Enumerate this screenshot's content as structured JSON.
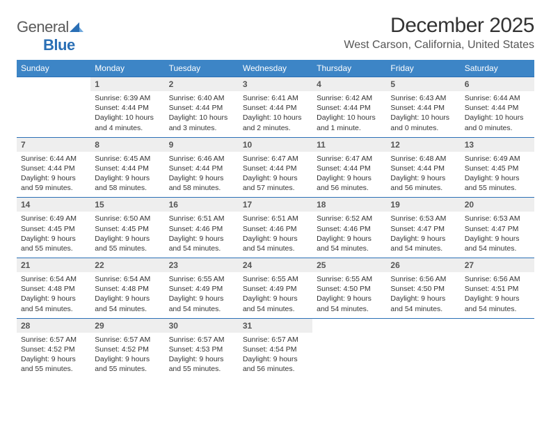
{
  "logo": {
    "word1": "General",
    "word2": "Blue"
  },
  "title": "December 2025",
  "location": "West Carson, California, United States",
  "colors": {
    "header_bg": "#3d85c6",
    "header_text": "#ffffff",
    "daynum_bg": "#eeeeee",
    "row_divider": "#2a6fb5",
    "body_text": "#333333",
    "logo_gray": "#5a5a5a",
    "logo_blue": "#2a6fb5"
  },
  "dayHeaders": [
    "Sunday",
    "Monday",
    "Tuesday",
    "Wednesday",
    "Thursday",
    "Friday",
    "Saturday"
  ],
  "weeks": [
    [
      {
        "n": "",
        "sunrise": "",
        "sunset": "",
        "daylight": ""
      },
      {
        "n": "1",
        "sunrise": "Sunrise: 6:39 AM",
        "sunset": "Sunset: 4:44 PM",
        "daylight": "Daylight: 10 hours and 4 minutes."
      },
      {
        "n": "2",
        "sunrise": "Sunrise: 6:40 AM",
        "sunset": "Sunset: 4:44 PM",
        "daylight": "Daylight: 10 hours and 3 minutes."
      },
      {
        "n": "3",
        "sunrise": "Sunrise: 6:41 AM",
        "sunset": "Sunset: 4:44 PM",
        "daylight": "Daylight: 10 hours and 2 minutes."
      },
      {
        "n": "4",
        "sunrise": "Sunrise: 6:42 AM",
        "sunset": "Sunset: 4:44 PM",
        "daylight": "Daylight: 10 hours and 1 minute."
      },
      {
        "n": "5",
        "sunrise": "Sunrise: 6:43 AM",
        "sunset": "Sunset: 4:44 PM",
        "daylight": "Daylight: 10 hours and 0 minutes."
      },
      {
        "n": "6",
        "sunrise": "Sunrise: 6:44 AM",
        "sunset": "Sunset: 4:44 PM",
        "daylight": "Daylight: 10 hours and 0 minutes."
      }
    ],
    [
      {
        "n": "7",
        "sunrise": "Sunrise: 6:44 AM",
        "sunset": "Sunset: 4:44 PM",
        "daylight": "Daylight: 9 hours and 59 minutes."
      },
      {
        "n": "8",
        "sunrise": "Sunrise: 6:45 AM",
        "sunset": "Sunset: 4:44 PM",
        "daylight": "Daylight: 9 hours and 58 minutes."
      },
      {
        "n": "9",
        "sunrise": "Sunrise: 6:46 AM",
        "sunset": "Sunset: 4:44 PM",
        "daylight": "Daylight: 9 hours and 58 minutes."
      },
      {
        "n": "10",
        "sunrise": "Sunrise: 6:47 AM",
        "sunset": "Sunset: 4:44 PM",
        "daylight": "Daylight: 9 hours and 57 minutes."
      },
      {
        "n": "11",
        "sunrise": "Sunrise: 6:47 AM",
        "sunset": "Sunset: 4:44 PM",
        "daylight": "Daylight: 9 hours and 56 minutes."
      },
      {
        "n": "12",
        "sunrise": "Sunrise: 6:48 AM",
        "sunset": "Sunset: 4:44 PM",
        "daylight": "Daylight: 9 hours and 56 minutes."
      },
      {
        "n": "13",
        "sunrise": "Sunrise: 6:49 AM",
        "sunset": "Sunset: 4:45 PM",
        "daylight": "Daylight: 9 hours and 55 minutes."
      }
    ],
    [
      {
        "n": "14",
        "sunrise": "Sunrise: 6:49 AM",
        "sunset": "Sunset: 4:45 PM",
        "daylight": "Daylight: 9 hours and 55 minutes."
      },
      {
        "n": "15",
        "sunrise": "Sunrise: 6:50 AM",
        "sunset": "Sunset: 4:45 PM",
        "daylight": "Daylight: 9 hours and 55 minutes."
      },
      {
        "n": "16",
        "sunrise": "Sunrise: 6:51 AM",
        "sunset": "Sunset: 4:46 PM",
        "daylight": "Daylight: 9 hours and 54 minutes."
      },
      {
        "n": "17",
        "sunrise": "Sunrise: 6:51 AM",
        "sunset": "Sunset: 4:46 PM",
        "daylight": "Daylight: 9 hours and 54 minutes."
      },
      {
        "n": "18",
        "sunrise": "Sunrise: 6:52 AM",
        "sunset": "Sunset: 4:46 PM",
        "daylight": "Daylight: 9 hours and 54 minutes."
      },
      {
        "n": "19",
        "sunrise": "Sunrise: 6:53 AM",
        "sunset": "Sunset: 4:47 PM",
        "daylight": "Daylight: 9 hours and 54 minutes."
      },
      {
        "n": "20",
        "sunrise": "Sunrise: 6:53 AM",
        "sunset": "Sunset: 4:47 PM",
        "daylight": "Daylight: 9 hours and 54 minutes."
      }
    ],
    [
      {
        "n": "21",
        "sunrise": "Sunrise: 6:54 AM",
        "sunset": "Sunset: 4:48 PM",
        "daylight": "Daylight: 9 hours and 54 minutes."
      },
      {
        "n": "22",
        "sunrise": "Sunrise: 6:54 AM",
        "sunset": "Sunset: 4:48 PM",
        "daylight": "Daylight: 9 hours and 54 minutes."
      },
      {
        "n": "23",
        "sunrise": "Sunrise: 6:55 AM",
        "sunset": "Sunset: 4:49 PM",
        "daylight": "Daylight: 9 hours and 54 minutes."
      },
      {
        "n": "24",
        "sunrise": "Sunrise: 6:55 AM",
        "sunset": "Sunset: 4:49 PM",
        "daylight": "Daylight: 9 hours and 54 minutes."
      },
      {
        "n": "25",
        "sunrise": "Sunrise: 6:55 AM",
        "sunset": "Sunset: 4:50 PM",
        "daylight": "Daylight: 9 hours and 54 minutes."
      },
      {
        "n": "26",
        "sunrise": "Sunrise: 6:56 AM",
        "sunset": "Sunset: 4:50 PM",
        "daylight": "Daylight: 9 hours and 54 minutes."
      },
      {
        "n": "27",
        "sunrise": "Sunrise: 6:56 AM",
        "sunset": "Sunset: 4:51 PM",
        "daylight": "Daylight: 9 hours and 54 minutes."
      }
    ],
    [
      {
        "n": "28",
        "sunrise": "Sunrise: 6:57 AM",
        "sunset": "Sunset: 4:52 PM",
        "daylight": "Daylight: 9 hours and 55 minutes."
      },
      {
        "n": "29",
        "sunrise": "Sunrise: 6:57 AM",
        "sunset": "Sunset: 4:52 PM",
        "daylight": "Daylight: 9 hours and 55 minutes."
      },
      {
        "n": "30",
        "sunrise": "Sunrise: 6:57 AM",
        "sunset": "Sunset: 4:53 PM",
        "daylight": "Daylight: 9 hours and 55 minutes."
      },
      {
        "n": "31",
        "sunrise": "Sunrise: 6:57 AM",
        "sunset": "Sunset: 4:54 PM",
        "daylight": "Daylight: 9 hours and 56 minutes."
      },
      {
        "n": "",
        "sunrise": "",
        "sunset": "",
        "daylight": ""
      },
      {
        "n": "",
        "sunrise": "",
        "sunset": "",
        "daylight": ""
      },
      {
        "n": "",
        "sunrise": "",
        "sunset": "",
        "daylight": ""
      }
    ]
  ]
}
